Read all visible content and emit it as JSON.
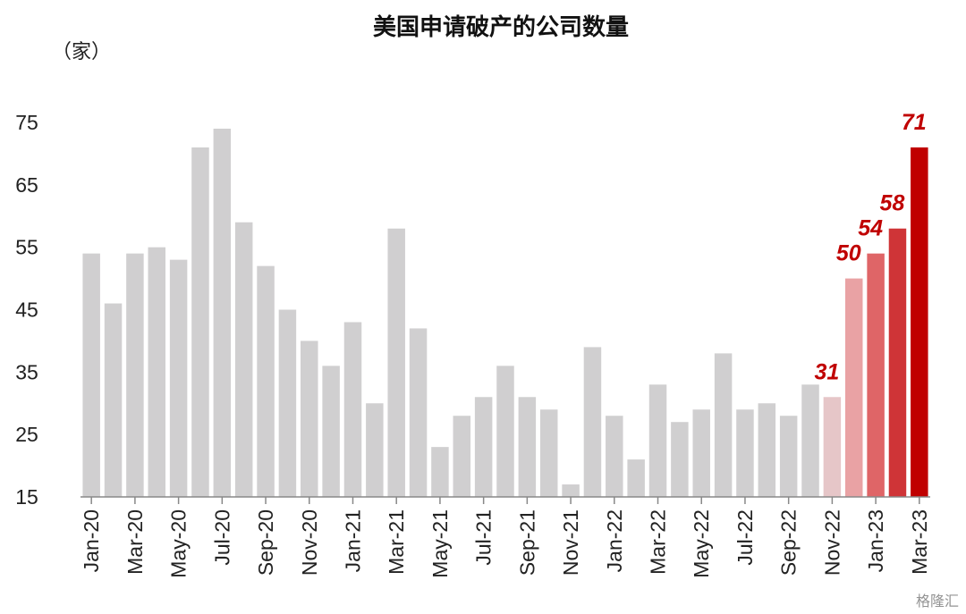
{
  "chart_data": {
    "type": "bar",
    "title": "美国申请破产的公司数量",
    "unit": "（家）",
    "ylim": [
      15,
      75
    ],
    "yticks": [
      15,
      25,
      35,
      45,
      55,
      65,
      75
    ],
    "categories": [
      "Jan-20",
      "Feb-20",
      "Mar-20",
      "Apr-20",
      "May-20",
      "Jun-20",
      "Jul-20",
      "Aug-20",
      "Sep-20",
      "Oct-20",
      "Nov-20",
      "Dec-20",
      "Jan-21",
      "Feb-21",
      "Mar-21",
      "Apr-21",
      "May-21",
      "Jun-21",
      "Jul-21",
      "Aug-21",
      "Sep-21",
      "Oct-21",
      "Nov-21",
      "Dec-21",
      "Jan-22",
      "Feb-22",
      "Mar-22",
      "Apr-22",
      "May-22",
      "Jun-22",
      "Jul-22",
      "Aug-22",
      "Sep-22",
      "Oct-22",
      "Nov-22",
      "Dec-22",
      "Jan-23",
      "Feb-23",
      "Mar-23"
    ],
    "values": [
      54,
      46,
      54,
      55,
      53,
      71,
      74,
      59,
      52,
      45,
      40,
      36,
      43,
      30,
      58,
      42,
      23,
      28,
      31,
      36,
      31,
      29,
      17,
      39,
      28,
      21,
      33,
      27,
      29,
      38,
      29,
      30,
      28,
      33,
      31,
      50,
      54,
      58,
      71
    ],
    "tick_labels": [
      "Jan-20",
      "",
      "Mar-20",
      "",
      "May-20",
      "",
      "Jul-20",
      "",
      "Sep-20",
      "",
      "Nov-20",
      "",
      "Jan-21",
      "",
      "Mar-21",
      "",
      "May-21",
      "",
      "Jul-21",
      "",
      "Sep-21",
      "",
      "Nov-21",
      "",
      "Jan-22",
      "",
      "Mar-22",
      "",
      "May-22",
      "",
      "Jul-22",
      "",
      "Sep-22",
      "",
      "Nov-22",
      "",
      "Jan-23",
      "",
      "Mar-23"
    ],
    "data_labels": [
      "",
      "",
      "",
      "",
      "",
      "",
      "",
      "",
      "",
      "",
      "",
      "",
      "",
      "",
      "",
      "",
      "",
      "",
      "",
      "",
      "",
      "",
      "",
      "",
      "",
      "",
      "",
      "",
      "",
      "",
      "",
      "",
      "",
      "",
      "31",
      "50",
      "54",
      "58",
      "71"
    ],
    "colors": {
      "default": "#d0cfd0",
      "bars": {
        "34": "#e6c6c8",
        "35": "#e9a2a4",
        "36": "#df6567",
        "37": "#cf3437",
        "38": "#c00000"
      }
    },
    "grid": false
  },
  "watermark": "格隆汇"
}
